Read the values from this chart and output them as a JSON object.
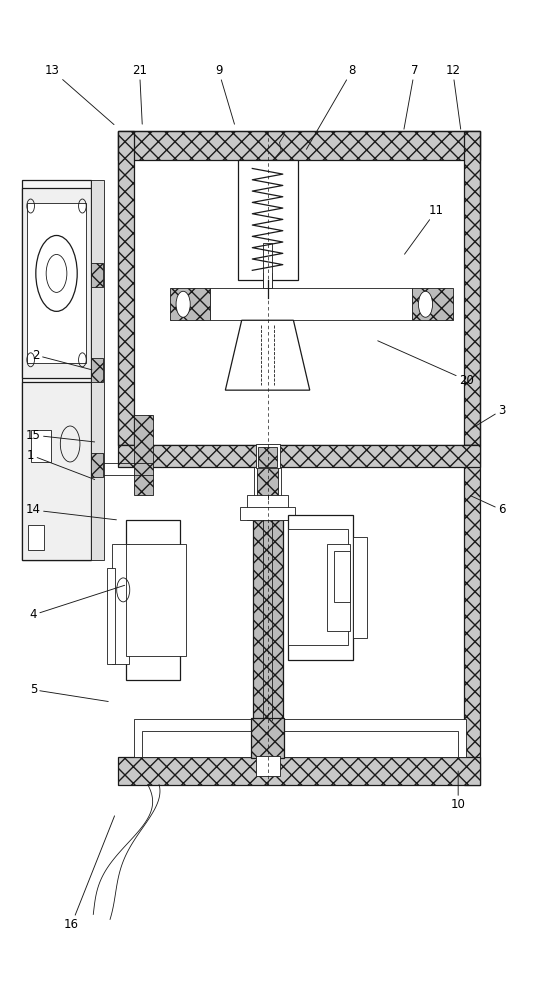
{
  "bg_color": "#ffffff",
  "line_color": "#1a1a1a",
  "fig_width": 5.46,
  "fig_height": 10.0,
  "label_configs": {
    "1": {
      "lpos": [
        0.055,
        0.545
      ],
      "apos": [
        0.175,
        0.52
      ]
    },
    "2": {
      "lpos": [
        0.065,
        0.645
      ],
      "apos": [
        0.17,
        0.63
      ]
    },
    "3": {
      "lpos": [
        0.92,
        0.59
      ],
      "apos": [
        0.86,
        0.57
      ]
    },
    "4": {
      "lpos": [
        0.06,
        0.385
      ],
      "apos": [
        0.23,
        0.415
      ]
    },
    "5": {
      "lpos": [
        0.06,
        0.31
      ],
      "apos": [
        0.2,
        0.298
      ]
    },
    "6": {
      "lpos": [
        0.92,
        0.49
      ],
      "apos": [
        0.86,
        0.505
      ]
    },
    "7": {
      "lpos": [
        0.76,
        0.93
      ],
      "apos": [
        0.74,
        0.87
      ]
    },
    "8": {
      "lpos": [
        0.645,
        0.93
      ],
      "apos": [
        0.56,
        0.85
      ]
    },
    "9": {
      "lpos": [
        0.4,
        0.93
      ],
      "apos": [
        0.43,
        0.875
      ]
    },
    "10": {
      "lpos": [
        0.84,
        0.195
      ],
      "apos": [
        0.84,
        0.23
      ]
    },
    "11": {
      "lpos": [
        0.8,
        0.79
      ],
      "apos": [
        0.74,
        0.745
      ]
    },
    "12": {
      "lpos": [
        0.83,
        0.93
      ],
      "apos": [
        0.845,
        0.87
      ]
    },
    "13": {
      "lpos": [
        0.095,
        0.93
      ],
      "apos": [
        0.21,
        0.875
      ]
    },
    "14": {
      "lpos": [
        0.06,
        0.49
      ],
      "apos": [
        0.215,
        0.48
      ]
    },
    "15": {
      "lpos": [
        0.06,
        0.565
      ],
      "apos": [
        0.175,
        0.558
      ]
    },
    "16": {
      "lpos": [
        0.13,
        0.075
      ],
      "apos": [
        0.21,
        0.185
      ]
    },
    "20": {
      "lpos": [
        0.855,
        0.62
      ],
      "apos": [
        0.69,
        0.66
      ]
    },
    "21": {
      "lpos": [
        0.255,
        0.93
      ],
      "apos": [
        0.26,
        0.875
      ]
    }
  }
}
